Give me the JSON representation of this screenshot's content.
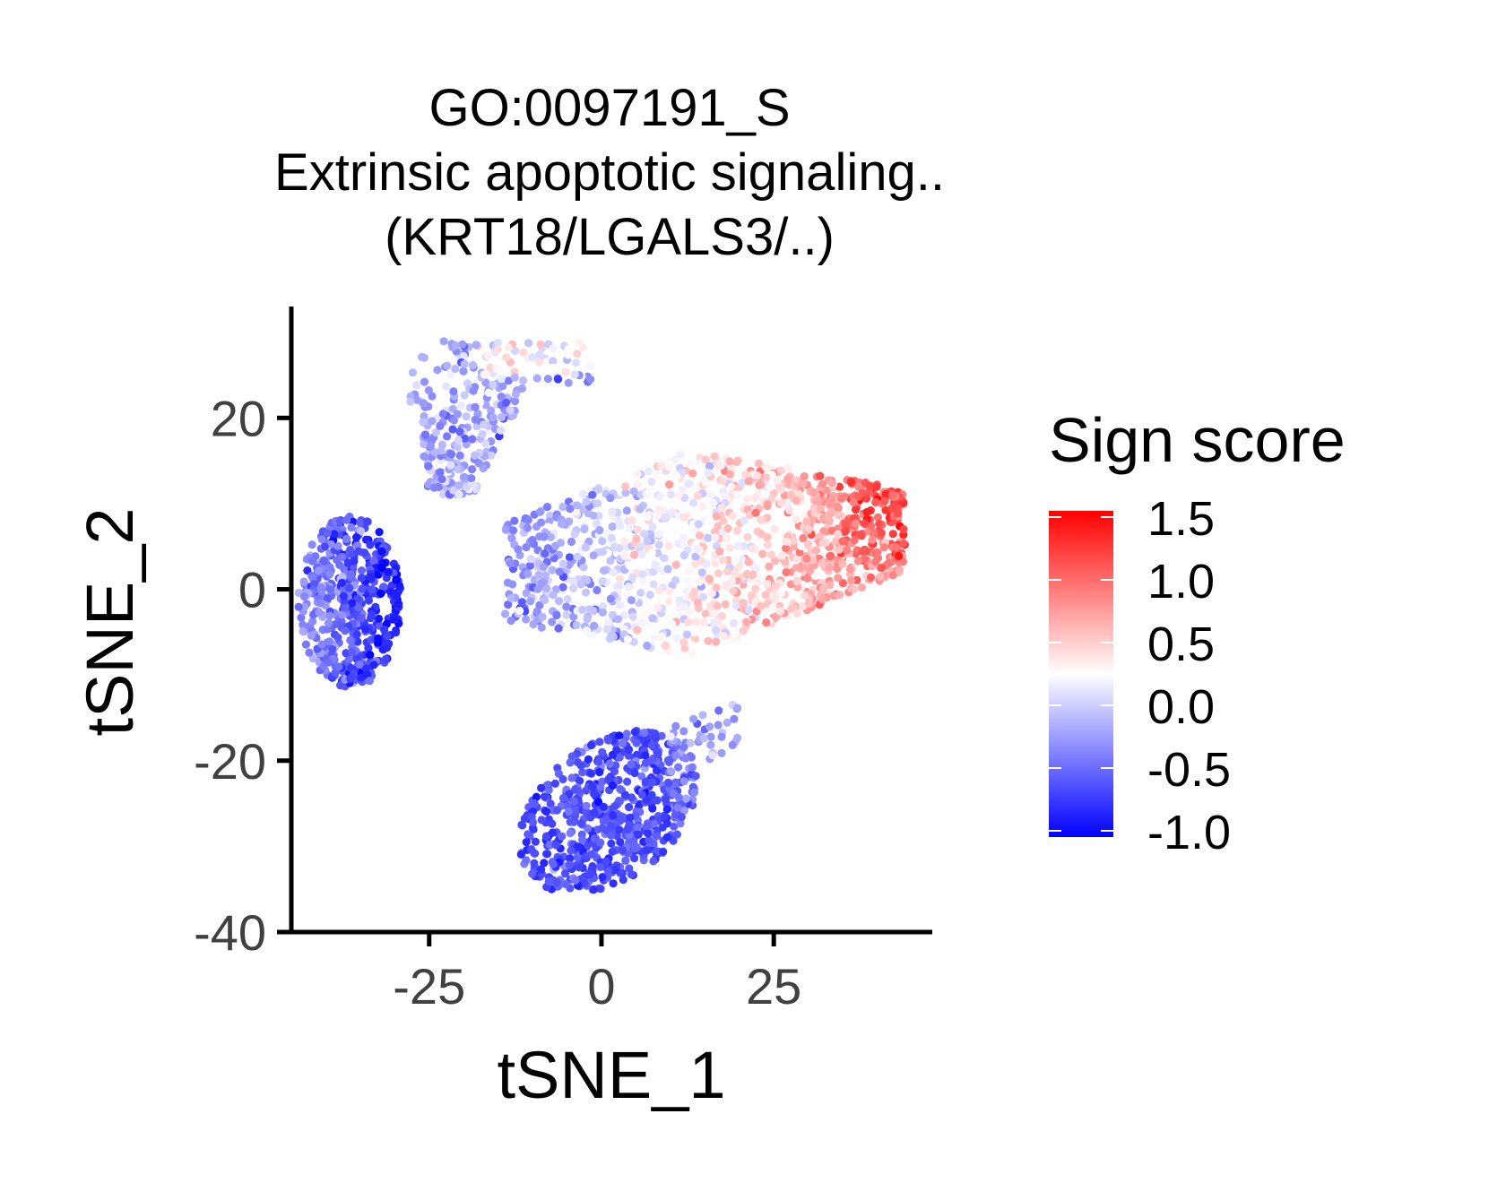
{
  "chart_data": {
    "type": "scatter",
    "title": [
      "GO:0097191_S",
      "Extrinsic apoptotic signaling..",
      "(KRT18/LGALS3/..)"
    ],
    "xlabel": "tSNE_1",
    "ylabel": "tSNE_2",
    "xlim": [
      -45,
      48
    ],
    "ylim": [
      -40,
      33
    ],
    "x_ticks": [
      "-25",
      "0",
      "25"
    ],
    "x_tick_values": [
      -25,
      0,
      25
    ],
    "y_ticks": [
      "20",
      "0",
      "-20",
      "-40"
    ],
    "y_tick_values": [
      20,
      0,
      -20,
      -40
    ],
    "grid": false,
    "point_count_approx": 2600,
    "color_scale": {
      "title": "Sign score",
      "labels": [
        "1.5",
        "1.0",
        "0.5",
        "0.0",
        "-0.5",
        "-1.0"
      ],
      "values": [
        1.5,
        1.0,
        0.5,
        0.0,
        -0.5,
        -1.0
      ],
      "range": [
        -1.05,
        1.55
      ],
      "low_color": "#0000ff",
      "mid_color": "#ffffff",
      "high_color": "#ff0000",
      "midpoint": 0.25
    },
    "clusters": [
      {
        "label": "left cluster",
        "center": [
          -36,
          -1.5
        ],
        "spread": [
          5.5,
          7.5
        ],
        "score_mean": -0.65
      },
      {
        "label": "top-left cluster",
        "center": [
          -22,
          20
        ],
        "spread": [
          6,
          7
        ],
        "score_mean": -0.15
      },
      {
        "label": "central cluster",
        "center": [
          14,
          6
        ],
        "spread": [
          22,
          11
        ],
        "score_range": [
          -0.4,
          1.3
        ]
      },
      {
        "label": "bottom cluster",
        "center": [
          2,
          -25
        ],
        "spread": [
          12,
          9
        ],
        "score_mean": -0.6
      }
    ]
  }
}
